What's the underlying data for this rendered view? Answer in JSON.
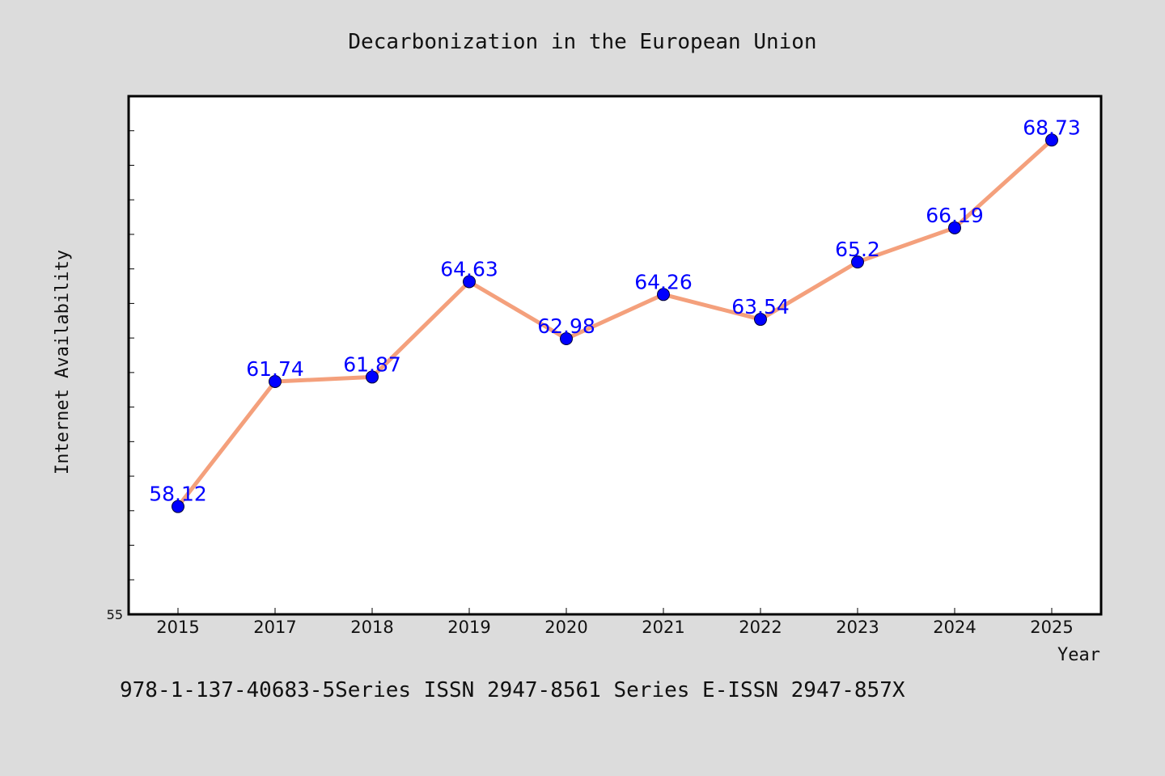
{
  "chart_data": {
    "type": "line",
    "title": "Decarbonization in the European Union",
    "xlabel": "Year",
    "ylabel": "Internet Availability",
    "categories": [
      "2015",
      "2017",
      "2018",
      "2019",
      "2020",
      "2021",
      "2022",
      "2023",
      "2024",
      "2025"
    ],
    "series": [
      {
        "values": [
          58.12,
          61.74,
          61.87,
          64.63,
          62.98,
          64.26,
          63.54,
          65.2,
          66.19,
          68.73
        ],
        "data_labels": [
          "58.12",
          "61.74",
          "61.87",
          "64.63",
          "62.98",
          "64.26",
          "63.54",
          "65.2",
          "66.19",
          "68.73"
        ]
      }
    ],
    "ylim": [
      55,
      70
    ],
    "y_tick_labels_shown": [
      "55"
    ],
    "line_color": "#f4a07c",
    "marker_color": "#0000ff",
    "label_color": "#0000ff",
    "grid": false,
    "legend": "none"
  },
  "footer": {
    "text": "978-1-137-40683-5Series ISSN 2947-8561 Series E-ISSN 2947-857X"
  },
  "colors": {
    "background": "#dcdcdc",
    "plot_background": "#ffffff"
  }
}
